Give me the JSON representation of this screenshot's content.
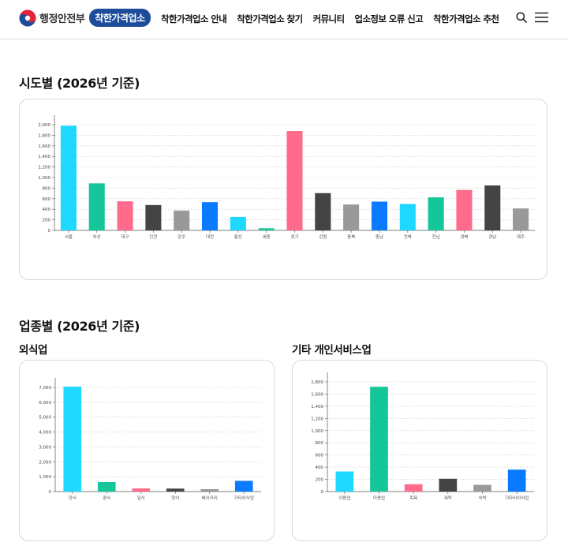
{
  "header": {
    "ministry": "행정안전부",
    "brand": "착한가격업소",
    "nav": [
      {
        "label": "착한가격업소 안내",
        "name": "nav-about"
      },
      {
        "label": "착한가격업소 찾기",
        "name": "nav-find"
      },
      {
        "label": "커뮤니티",
        "name": "nav-community"
      },
      {
        "label": "업소정보 오류 신고",
        "name": "nav-error-report"
      },
      {
        "label": "착한가격업소 추천",
        "name": "nav-recommend"
      }
    ],
    "icons": {
      "search": "search-icon",
      "menu": "hamburger-menu-icon",
      "emblem": "government-emblem-icon"
    }
  },
  "region_section": {
    "title": "시도별 (2026년 기준)"
  },
  "industry_section": {
    "title": "업종별 (2026년 기준)",
    "restaurant_title": "외식업",
    "service_title": "기타 개인서비스업"
  },
  "colors": {
    "cyan": "#1ed8ff",
    "teal": "#14c699",
    "pink": "#ff6b8b",
    "dark": "#444444",
    "gray": "#999999",
    "blue": "#0a7bff",
    "grid": "#cccccc",
    "brand_navy": "#1d4c9a"
  },
  "chart_data": [
    {
      "id": "region",
      "type": "bar",
      "categories": [
        "서울",
        "부산",
        "대구",
        "인천",
        "광주",
        "대전",
        "울산",
        "세종",
        "경기",
        "강원",
        "충북",
        "충남",
        "전북",
        "전남",
        "경북",
        "경남",
        "제주"
      ],
      "values": [
        1980,
        890,
        550,
        480,
        375,
        535,
        255,
        40,
        1880,
        705,
        490,
        545,
        500,
        625,
        765,
        850,
        415
      ],
      "colors": [
        "#1ed8ff",
        "#14c699",
        "#ff6b8b",
        "#444444",
        "#999999",
        "#0a7bff",
        "#1ed8ff",
        "#14c699",
        "#ff6b8b",
        "#444444",
        "#999999",
        "#0a7bff",
        "#1ed8ff",
        "#14c699",
        "#ff6b8b",
        "#444444",
        "#999999"
      ],
      "ylim": [
        0,
        2000
      ],
      "yticks": [
        0,
        200,
        400,
        600,
        800,
        1000,
        1200,
        1400,
        1600,
        1800,
        2000
      ],
      "ytick_labels": [
        "0",
        "200",
        "400",
        "600",
        "800",
        "1,000",
        "1,200",
        "1,400",
        "1,600",
        "1,800",
        "2,000"
      ],
      "grid": true
    },
    {
      "id": "restaurant",
      "type": "bar",
      "categories": [
        "한식",
        "중식",
        "일식",
        "양식",
        "베이커리",
        "기타외식업"
      ],
      "values": [
        7050,
        640,
        210,
        200,
        160,
        720
      ],
      "colors": [
        "#1ed8ff",
        "#14c699",
        "#ff6b8b",
        "#444444",
        "#999999",
        "#0a7bff"
      ],
      "ylim": [
        0,
        7000
      ],
      "yticks": [
        0,
        1000,
        2000,
        3000,
        4000,
        5000,
        6000,
        7000
      ],
      "ytick_labels": [
        "0",
        "1,000",
        "2,000",
        "3,000",
        "4,000",
        "5,000",
        "6,000",
        "7,000"
      ],
      "grid": true
    },
    {
      "id": "service",
      "type": "bar",
      "categories": [
        "이용업",
        "미용업",
        "목욕",
        "세탁",
        "숙박",
        "기타비외식업"
      ],
      "values": [
        330,
        1720,
        120,
        210,
        110,
        360
      ],
      "colors": [
        "#1ed8ff",
        "#14c699",
        "#ff6b8b",
        "#444444",
        "#999999",
        "#0a7bff"
      ],
      "ylim": [
        0,
        1800
      ],
      "yticks": [
        0,
        200,
        400,
        600,
        800,
        1000,
        1200,
        1400,
        1600,
        1800
      ],
      "ytick_labels": [
        "0",
        "200",
        "400",
        "600",
        "800",
        "1,000",
        "1,200",
        "1,400",
        "1,600",
        "1,800"
      ],
      "grid": true
    }
  ]
}
